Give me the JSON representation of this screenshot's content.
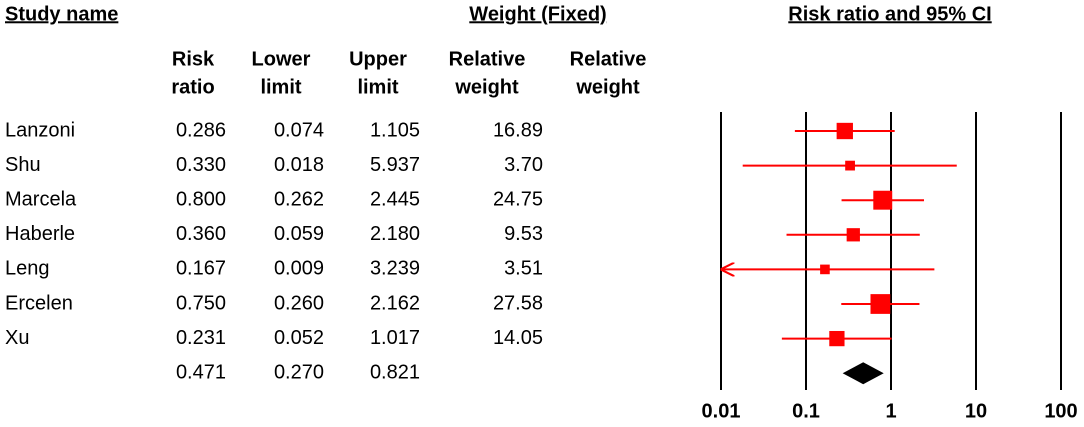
{
  "chart_data": {
    "type": "forest",
    "headers": {
      "study": "Study name",
      "weight": "Weight (Fixed)",
      "plot": "Risk ratio and 95% CI"
    },
    "columns": [
      [
        "Risk",
        "ratio"
      ],
      [
        "Lower",
        "limit"
      ],
      [
        "Upper",
        "limit"
      ],
      [
        "Relative",
        "weight"
      ],
      [
        "Relative",
        "weight"
      ]
    ],
    "categories": [
      "Lanzoni",
      "Shu",
      "Marcela",
      "Haberle",
      "Leng",
      "Ercelen",
      "Xu",
      null
    ],
    "values": [
      0.286,
      0.33,
      0.8,
      0.36,
      0.167,
      0.75,
      0.231,
      0.471
    ],
    "value_labels": [
      "0.286",
      "0.330",
      "0.800",
      "0.360",
      "0.167",
      "0.750",
      "0.231",
      "0.471"
    ],
    "lower": [
      0.074,
      0.018,
      0.262,
      0.059,
      0.009,
      0.26,
      0.052,
      0.27
    ],
    "lower_labels": [
      "0.074",
      "0.018",
      "0.262",
      "0.059",
      "0.009",
      "0.260",
      "0.052",
      "0.270"
    ],
    "upper": [
      1.105,
      5.937,
      2.445,
      2.18,
      3.239,
      2.162,
      1.017,
      0.821
    ],
    "upper_labels": [
      "1.105",
      "5.937",
      "2.445",
      "2.180",
      "3.239",
      "2.162",
      "1.017",
      "0.821"
    ],
    "weights": [
      16.89,
      3.7,
      24.75,
      9.53,
      3.51,
      27.58,
      14.05,
      null
    ],
    "weight_labels": [
      "16.89",
      "3.70",
      "24.75",
      "9.53",
      "3.51",
      "27.58",
      "14.05",
      null
    ],
    "xlim": [
      0.01,
      100
    ],
    "xticks": [
      0.01,
      0.1,
      1,
      10,
      100
    ],
    "log_x": true,
    "color": "#ff0000",
    "summary_color": "#000000"
  }
}
